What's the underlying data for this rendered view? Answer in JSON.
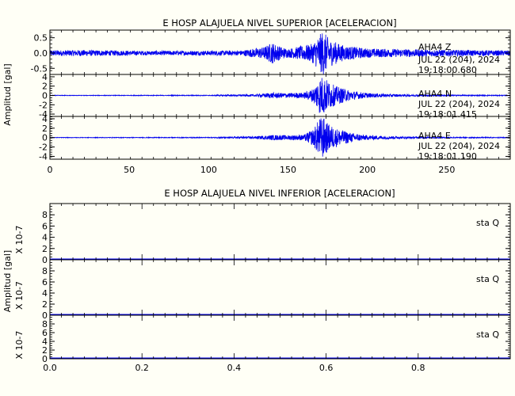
{
  "chart_data": [
    {
      "type": "line",
      "title": "E HOSP ALAJUELA NIVEL SUPERIOR [ACELERACION]",
      "ylabel": "Amplitud [gal]",
      "xlim": [
        0,
        290
      ],
      "xticks": [
        "0",
        "50",
        "100",
        "150",
        "200",
        "250"
      ],
      "line_color": "#0000ee",
      "panels": [
        {
          "name": "Z",
          "ylim": [
            -0.7,
            0.75
          ],
          "yticks": [
            "0.5",
            "0.0",
            "-0.5"
          ],
          "station": "AHA4",
          "component": "Z",
          "date": "JUL 22 (204), 2024",
          "time": "19:18:00.680",
          "envelope": {
            "x": [
              0,
              20,
              60,
              120,
              135,
              140,
              145,
              150,
              165,
              170,
              172,
              176,
              185,
              200,
              230,
              260,
              290
            ],
            "amplitude": [
              0.09,
              0.1,
              0.07,
              0.08,
              0.2,
              0.35,
              0.22,
              0.14,
              0.3,
              0.6,
              0.75,
              0.45,
              0.25,
              0.15,
              0.12,
              0.1,
              0.08
            ]
          }
        },
        {
          "name": "N",
          "ylim": [
            -4.5,
            4.5
          ],
          "yticks": [
            "4",
            "2",
            "0",
            "-2",
            "-4"
          ],
          "station": "AHA4",
          "component": "N",
          "date": "JUL 22 (204), 2024",
          "time": "19:18:01.415",
          "envelope": {
            "x": [
              0,
              100,
              130,
              140,
              150,
              160,
              166,
              170,
              172,
              175,
              180,
              190,
              200,
              220,
              250,
              290
            ],
            "amplitude": [
              0.05,
              0.08,
              0.25,
              0.6,
              0.5,
              0.6,
              1.5,
              4.0,
              4.3,
              3.2,
              2.0,
              1.0,
              0.5,
              0.25,
              0.12,
              0.08
            ]
          }
        },
        {
          "name": "E",
          "ylim": [
            -4.6,
            4.5
          ],
          "yticks": [
            "4",
            "2",
            "0",
            "-2",
            "-4"
          ],
          "station": "AHA4",
          "component": "E",
          "date": "JUL 22 (204), 2024",
          "time": "19:18:01.190",
          "envelope": {
            "x": [
              0,
              100,
              130,
              140,
              150,
              160,
              166,
              170,
              172,
              175,
              180,
              190,
              200,
              220,
              250,
              290
            ],
            "amplitude": [
              0.05,
              0.08,
              0.25,
              0.55,
              0.5,
              0.6,
              1.8,
              4.2,
              4.5,
              3.0,
              2.0,
              1.0,
              0.5,
              0.25,
              0.12,
              0.08
            ]
          }
        }
      ]
    },
    {
      "type": "line",
      "title": "E HOSP ALAJUELA NIVEL INFERIOR [ACELERACION]",
      "ylabel": "Amplitud [gal]",
      "xlim": [
        0,
        1.0
      ],
      "xticks": [
        "0.0",
        "0.2",
        "0.4",
        "0.6",
        "0.8"
      ],
      "line_color": "#0000ee",
      "panels": [
        {
          "name": "1",
          "ylim": [
            0,
            10
          ],
          "yticks": [
            "8",
            "6",
            "4",
            "2",
            "0"
          ],
          "scale_label": "X 10-7",
          "label": "sta   Q",
          "value": 0
        },
        {
          "name": "2",
          "ylim": [
            0,
            10
          ],
          "yticks": [
            "8",
            "6",
            "4",
            "2",
            "0"
          ],
          "scale_label": "X 10-7",
          "label": "sta   Q",
          "value": 0
        },
        {
          "name": "3",
          "ylim": [
            0,
            10
          ],
          "yticks": [
            "8",
            "6",
            "4",
            "2",
            "0"
          ],
          "scale_label": "X 10-7",
          "label": "sta   Q",
          "value": 0
        }
      ]
    }
  ]
}
